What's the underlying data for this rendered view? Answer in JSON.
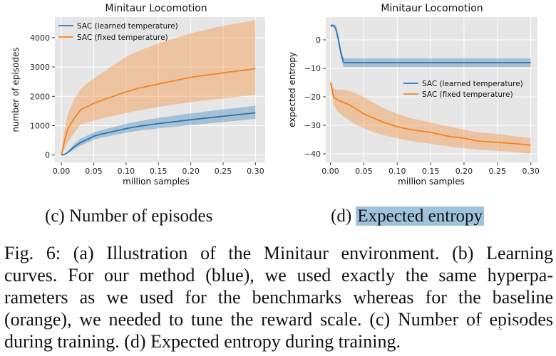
{
  "figure": {
    "subcaptions": {
      "c": "(c) Number of episodes",
      "d_prefix": "(d) ",
      "d_highlight": "Expected entropy"
    },
    "caption_lines": [
      "Fig. 6: (a) Illustration of the Minitaur environment. (b) Learning",
      "curves. For our method (blue), we used exactly the same hyperpa-",
      "rameters as we used for the benchmarks whereas for the baseline",
      "(orange), we needed to tune the reward scale. (c) Number of episodes",
      "during training. (d) Expected entropy during training."
    ],
    "watermark": "知乎 @2ez4U",
    "highlight_color": "#9ec3dc"
  },
  "colors": {
    "blue": "#2c76b4",
    "orange": "#f5821f",
    "panel_bg": "#e6e6e6"
  },
  "chart_data": [
    {
      "type": "line",
      "title": "Minitaur Locomotion",
      "xlabel": "million samples",
      "ylabel": "number of episodes",
      "xlim": [
        -0.01,
        0.315
      ],
      "ylim": [
        -250,
        4700
      ],
      "xticks": [
        0.0,
        0.05,
        0.1,
        0.15,
        0.2,
        0.25,
        0.3
      ],
      "xtick_labels": [
        "0.00",
        "0.05",
        "0.10",
        "0.15",
        "0.20",
        "0.25",
        "0.30"
      ],
      "yticks": [
        0,
        1000,
        2000,
        3000,
        4000
      ],
      "ytick_labels": [
        "0",
        "1000",
        "2000",
        "3000",
        "4000"
      ],
      "legend_position": "upper-left",
      "series": [
        {
          "name": "SAC (learned temperature)",
          "color": "blue",
          "x": [
            0.0,
            0.005,
            0.01,
            0.02,
            0.03,
            0.04,
            0.05,
            0.06,
            0.08,
            0.1,
            0.12,
            0.15,
            0.2,
            0.25,
            0.3
          ],
          "mean": [
            0,
            20,
            90,
            280,
            430,
            530,
            640,
            700,
            800,
            900,
            980,
            1070,
            1200,
            1320,
            1440
          ],
          "lower": [
            0,
            10,
            60,
            190,
            320,
            420,
            520,
            580,
            670,
            760,
            830,
            910,
            1020,
            1120,
            1230
          ],
          "upper": [
            0,
            30,
            140,
            380,
            560,
            660,
            770,
            840,
            950,
            1060,
            1150,
            1260,
            1420,
            1550,
            1680
          ]
        },
        {
          "name": "SAC (fixed temperature)",
          "color": "orange",
          "x": [
            0.0,
            0.005,
            0.01,
            0.02,
            0.03,
            0.04,
            0.05,
            0.06,
            0.08,
            0.1,
            0.12,
            0.15,
            0.2,
            0.25,
            0.3
          ],
          "mean": [
            0,
            500,
            900,
            1250,
            1550,
            1650,
            1760,
            1850,
            2000,
            2150,
            2280,
            2420,
            2650,
            2800,
            2940
          ],
          "lower": [
            0,
            200,
            450,
            750,
            1050,
            1100,
            1170,
            1230,
            1330,
            1430,
            1520,
            1640,
            1800,
            1930,
            2050
          ],
          "upper": [
            0,
            850,
            1400,
            1900,
            2250,
            2450,
            2600,
            2750,
            3050,
            3350,
            3550,
            3800,
            4150,
            4400,
            4600
          ]
        }
      ]
    },
    {
      "type": "line",
      "title": "Minitaur Locomotion",
      "xlabel": "million samples",
      "ylabel": "expected entropy",
      "xlim": [
        -0.007,
        0.31
      ],
      "ylim": [
        -43,
        8
      ],
      "xticks": [
        0.0,
        0.05,
        0.1,
        0.15,
        0.2,
        0.25,
        0.3
      ],
      "xtick_labels": [
        "0.00",
        "0.05",
        "0.10",
        "0.15",
        "0.20",
        "0.25",
        "0.30"
      ],
      "yticks": [
        0,
        -10,
        -20,
        -30,
        -40
      ],
      "ytick_labels": [
        "0",
        "−10",
        "−20",
        "−30",
        "−40"
      ],
      "legend_position": "right",
      "series": [
        {
          "name": "SAC (learned temperature)",
          "color": "blue",
          "x": [
            0.0,
            0.005,
            0.008,
            0.012,
            0.016,
            0.02,
            0.025,
            0.04,
            0.06,
            0.08,
            0.1,
            0.15,
            0.2,
            0.25,
            0.3
          ],
          "mean": [
            5,
            5,
            4,
            0,
            -5,
            -8,
            -8,
            -8,
            -8,
            -8,
            -8,
            -8,
            -8,
            -8,
            -8
          ],
          "lower": [
            4.5,
            4.5,
            3,
            -1.5,
            -6.5,
            -9.5,
            -9.5,
            -9.5,
            -9.5,
            -9.5,
            -9.5,
            -9.5,
            -9.5,
            -9.5,
            -9.5
          ],
          "upper": [
            5.5,
            5.5,
            5,
            1.5,
            -3.5,
            -6.5,
            -6.5,
            -6.5,
            -6.5,
            -6.5,
            -6.5,
            -6.5,
            -6.5,
            -6.5,
            -6.5
          ]
        },
        {
          "name": "SAC (fixed temperature)",
          "color": "orange",
          "x": [
            0.0,
            0.005,
            0.01,
            0.02,
            0.03,
            0.04,
            0.05,
            0.06,
            0.08,
            0.1,
            0.12,
            0.15,
            0.18,
            0.2,
            0.22,
            0.25,
            0.28,
            0.3
          ],
          "mean": [
            -15,
            -20,
            -21,
            -22,
            -23,
            -24.5,
            -26,
            -27,
            -29,
            -30.5,
            -31.5,
            -32.5,
            -34,
            -34.5,
            -35.5,
            -36,
            -36.5,
            -37
          ],
          "lower": [
            -16,
            -23,
            -25,
            -27,
            -28.5,
            -30,
            -31,
            -32,
            -33.5,
            -34.5,
            -35.5,
            -36.5,
            -37.5,
            -38,
            -38.5,
            -39,
            -39.5,
            -40
          ],
          "upper": [
            -14,
            -17,
            -17.5,
            -17.5,
            -18,
            -19,
            -20,
            -21.5,
            -24,
            -26,
            -27.5,
            -29,
            -30.5,
            -31.5,
            -32.5,
            -33,
            -34,
            -34.5
          ]
        }
      ]
    }
  ]
}
